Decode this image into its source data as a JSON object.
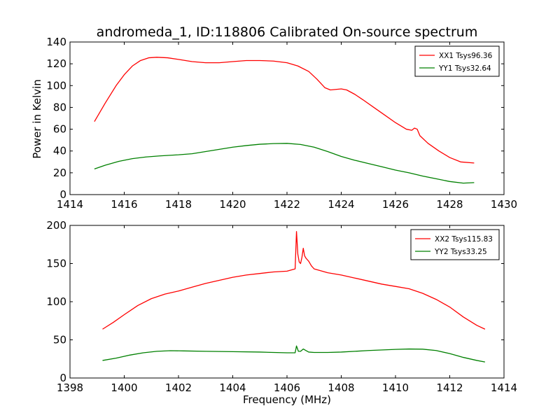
{
  "title": "andromeda_1, ID:118806 Calibrated On-source spectrum",
  "ylabel": "Power in Kelvin",
  "xlabel": "Frequency (MHz)",
  "colors": {
    "xx": "#ff0000",
    "yy": "#008000"
  },
  "chart_data": [
    {
      "type": "line",
      "title": "andromeda_1, ID:118806 Calibrated On-source spectrum",
      "ylabel": "Power in Kelvin",
      "xlabel": "",
      "xlim": [
        1414,
        1430
      ],
      "ylim": [
        0,
        140
      ],
      "xticks": [
        1414,
        1416,
        1418,
        1420,
        1422,
        1424,
        1426,
        1428,
        1430
      ],
      "yticks": [
        0,
        20,
        40,
        60,
        80,
        100,
        120,
        140
      ],
      "grid": false,
      "legend": "top-right",
      "series": [
        {
          "name": "XX1 Tsys96.36",
          "color": "#ff0000",
          "x": [
            1414.9,
            1415.3,
            1415.7,
            1416.0,
            1416.3,
            1416.6,
            1416.9,
            1417.2,
            1417.6,
            1418.0,
            1418.5,
            1419.0,
            1419.5,
            1420.0,
            1420.5,
            1421.0,
            1421.5,
            1422.0,
            1422.4,
            1422.8,
            1423.1,
            1423.4,
            1423.6,
            1423.8,
            1424.0,
            1424.2,
            1424.5,
            1424.8,
            1425.2,
            1425.6,
            1426.0,
            1426.4,
            1426.6,
            1426.7,
            1426.8,
            1426.9,
            1427.2,
            1427.6,
            1428.0,
            1428.4,
            1428.9
          ],
          "values": [
            67,
            84,
            100,
            110,
            118,
            123,
            125.5,
            126,
            125.5,
            124,
            122,
            121,
            121,
            122,
            123,
            123,
            122.5,
            121,
            118,
            113,
            106,
            98,
            96,
            96.5,
            97,
            96,
            92,
            87,
            80,
            73,
            66,
            60,
            59,
            61,
            60,
            54,
            47,
            40,
            34,
            30,
            29
          ]
        },
        {
          "name": "YY1 Tsys32.64",
          "color": "#008000",
          "x": [
            1414.9,
            1415.3,
            1415.8,
            1416.3,
            1416.8,
            1417.3,
            1418.0,
            1418.5,
            1419.0,
            1419.5,
            1420.0,
            1420.5,
            1421.0,
            1421.5,
            1422.0,
            1422.5,
            1423.0,
            1423.5,
            1424.0,
            1424.5,
            1425.0,
            1425.5,
            1426.0,
            1426.5,
            1427.0,
            1427.5,
            1428.0,
            1428.5,
            1428.9
          ],
          "values": [
            23.5,
            27,
            30.5,
            33,
            34.5,
            35.5,
            36.5,
            37.5,
            39.5,
            41.5,
            43.5,
            45,
            46.2,
            46.8,
            47,
            46,
            43.5,
            39.5,
            35,
            31.5,
            28.5,
            25.5,
            22.5,
            20,
            17,
            14.5,
            12,
            10.5,
            11
          ]
        }
      ]
    },
    {
      "type": "line",
      "title": "",
      "ylabel": "",
      "xlabel": "Frequency (MHz)",
      "xlim": [
        1398,
        1414
      ],
      "ylim": [
        0,
        200
      ],
      "xticks": [
        1398,
        1400,
        1402,
        1404,
        1406,
        1408,
        1410,
        1412,
        1414
      ],
      "yticks": [
        0,
        50,
        100,
        150,
        200
      ],
      "grid": false,
      "legend": "top-right",
      "series": [
        {
          "name": "XX2 Tsys115.83",
          "color": "#ff0000",
          "x": [
            1399.2,
            1399.6,
            1400.0,
            1400.5,
            1401.0,
            1401.5,
            1402.0,
            1402.5,
            1403.0,
            1403.5,
            1404.0,
            1404.5,
            1405.0,
            1405.5,
            1406.0,
            1406.3,
            1406.35,
            1406.4,
            1406.45,
            1406.5,
            1406.55,
            1406.6,
            1406.65,
            1406.7,
            1406.8,
            1406.9,
            1407.0,
            1407.5,
            1408.0,
            1408.5,
            1409.0,
            1409.5,
            1410.0,
            1410.5,
            1411.0,
            1411.5,
            1412.0,
            1412.5,
            1413.0,
            1413.3
          ],
          "values": [
            64,
            73,
            83,
            95,
            104,
            110,
            114,
            119,
            124,
            128,
            132,
            135,
            137,
            139,
            140,
            143,
            192,
            162,
            152,
            150,
            158,
            170,
            160,
            157,
            153,
            147,
            143,
            138,
            135,
            131,
            127,
            123,
            120,
            117,
            111,
            103,
            93,
            80,
            69,
            64
          ]
        },
        {
          "name": "YY2 Tsys33.25",
          "color": "#008000",
          "x": [
            1399.2,
            1399.7,
            1400.2,
            1400.7,
            1401.2,
            1401.7,
            1402.2,
            1403.0,
            1404.0,
            1405.0,
            1406.0,
            1406.3,
            1406.35,
            1406.42,
            1406.5,
            1406.6,
            1406.7,
            1406.8,
            1407.0,
            1407.5,
            1408.0,
            1409.0,
            1410.0,
            1410.5,
            1411.0,
            1411.5,
            1412.0,
            1412.5,
            1413.0,
            1413.3
          ],
          "values": [
            23,
            26,
            30,
            33,
            35,
            35.8,
            35.5,
            35,
            34.5,
            34,
            33,
            33,
            42,
            35,
            35,
            38,
            36,
            34,
            33.5,
            33.5,
            34,
            36,
            37.5,
            38,
            37.8,
            36,
            32,
            27,
            23,
            21
          ]
        }
      ]
    }
  ]
}
